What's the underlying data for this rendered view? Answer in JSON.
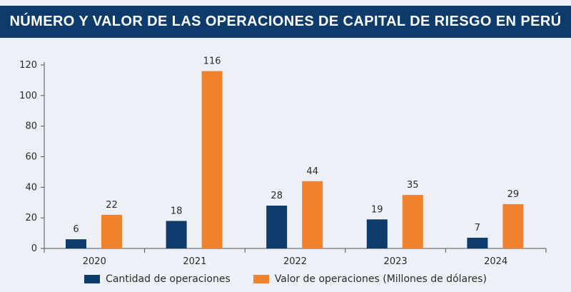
{
  "title": "NÚMERO Y VALOR DE LAS OPERACIONES DE CAPITAL DE RIESGO EN PERÚ",
  "colors": {
    "title_bg": "#0d3b6b",
    "series_count": "#0d3b6b",
    "series_value": "#f0822e"
  },
  "chart_data": {
    "type": "bar",
    "title": "",
    "xlabel": "",
    "ylabel": "",
    "categories": [
      "2020",
      "2021",
      "2022",
      "2023",
      "2024"
    ],
    "series": [
      {
        "name": "Cantidad de operaciones",
        "values": [
          6,
          18,
          28,
          19,
          7
        ]
      },
      {
        "name": "Valor de operaciones (Millones de dólares)",
        "values": [
          22,
          116,
          44,
          35,
          29
        ]
      }
    ],
    "ylim": [
      0,
      120
    ],
    "yticks": [
      0,
      20,
      40,
      60,
      80,
      100,
      120
    ],
    "grid": false,
    "data_labels": true,
    "legend": "bottom-center"
  }
}
